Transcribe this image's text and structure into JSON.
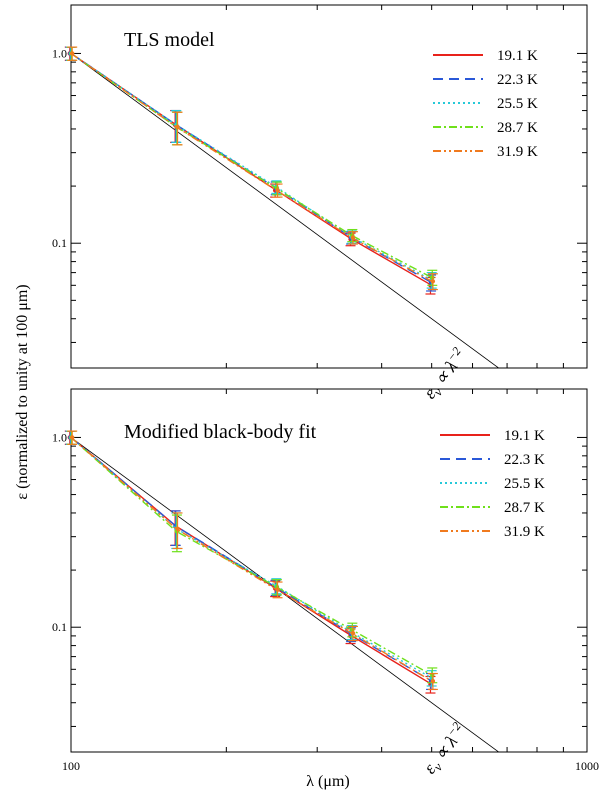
{
  "xlabel": "λ (μm)",
  "ylabel": "ε (normalized to unity at 100 μm)",
  "xtick_labels": [
    "100",
    "1000"
  ],
  "ytick_labels": [
    "1.0",
    "0.1"
  ],
  "chart_data": [
    {
      "type": "line",
      "title": "TLS model",
      "xscale": "log",
      "yscale": "log",
      "xlim": [
        100,
        1000
      ],
      "ylim": [
        0.022,
        1.8
      ],
      "x": [
        100,
        160,
        250,
        350,
        500
      ],
      "series": [
        {
          "name": "19.1 K",
          "color": "#e8221b",
          "dash": "",
          "values": [
            1.0,
            0.42,
            0.19,
            0.105,
            0.06
          ],
          "err": [
            0.08,
            0.08,
            0.015,
            0.008,
            0.006
          ]
        },
        {
          "name": "22.3 K",
          "color": "#2a58d8",
          "dash": "10,6",
          "values": [
            1.0,
            0.42,
            0.195,
            0.107,
            0.062
          ],
          "err": [
            0.08,
            0.08,
            0.015,
            0.008,
            0.006
          ]
        },
        {
          "name": "25.5 K",
          "color": "#27c9d8",
          "dash": "2,3",
          "values": [
            1.0,
            0.42,
            0.198,
            0.108,
            0.064
          ],
          "err": [
            0.08,
            0.08,
            0.015,
            0.008,
            0.006
          ]
        },
        {
          "name": "28.7 K",
          "color": "#6fe01b",
          "dash": "8,3,2,3",
          "values": [
            1.0,
            0.41,
            0.195,
            0.11,
            0.066
          ],
          "err": [
            0.08,
            0.08,
            0.015,
            0.008,
            0.006
          ]
        },
        {
          "name": "31.9 K",
          "color": "#f07a1e",
          "dash": "8,3,2,3,2,3",
          "values": [
            1.0,
            0.41,
            0.19,
            0.107,
            0.063
          ],
          "err": [
            0.08,
            0.08,
            0.015,
            0.008,
            0.006
          ]
        }
      ],
      "reference_line": {
        "label_main": "ε",
        "label_sub": "ν",
        "label_rest": " ∝ λ",
        "label_sup": "−2",
        "slope": -2,
        "x_start": 100,
        "y_start": 1.0,
        "x_end": 1000
      }
    },
    {
      "type": "line",
      "title": "Modified black-body fit",
      "xscale": "log",
      "yscale": "log",
      "xlim": [
        100,
        1000
      ],
      "ylim": [
        0.022,
        1.8
      ],
      "x": [
        100,
        160,
        250,
        350,
        500
      ],
      "series": [
        {
          "name": "19.1 K",
          "color": "#e8221b",
          "dash": "",
          "values": [
            1.0,
            0.34,
            0.16,
            0.09,
            0.05
          ],
          "err": [
            0.08,
            0.07,
            0.015,
            0.008,
            0.005
          ]
        },
        {
          "name": "22.3 K",
          "color": "#2a58d8",
          "dash": "10,6",
          "values": [
            1.0,
            0.34,
            0.162,
            0.092,
            0.052
          ],
          "err": [
            0.08,
            0.07,
            0.015,
            0.008,
            0.005
          ]
        },
        {
          "name": "25.5 K",
          "color": "#27c9d8",
          "dash": "2,3",
          "values": [
            1.0,
            0.33,
            0.165,
            0.094,
            0.054
          ],
          "err": [
            0.08,
            0.07,
            0.015,
            0.008,
            0.005
          ]
        },
        {
          "name": "28.7 K",
          "color": "#6fe01b",
          "dash": "8,3,2,3",
          "values": [
            1.0,
            0.32,
            0.163,
            0.097,
            0.056
          ],
          "err": [
            0.08,
            0.07,
            0.015,
            0.008,
            0.005
          ]
        },
        {
          "name": "31.9 K",
          "color": "#f07a1e",
          "dash": "8,3,2,3,2,3",
          "values": [
            1.0,
            0.33,
            0.158,
            0.093,
            0.052
          ],
          "err": [
            0.08,
            0.07,
            0.015,
            0.008,
            0.005
          ]
        }
      ],
      "reference_line": {
        "label_main": "ε",
        "label_sub": "ν",
        "label_rest": " ∝ λ",
        "label_sup": "−2",
        "slope": -2,
        "x_start": 100,
        "y_start": 1.0,
        "x_end": 1000
      }
    }
  ]
}
